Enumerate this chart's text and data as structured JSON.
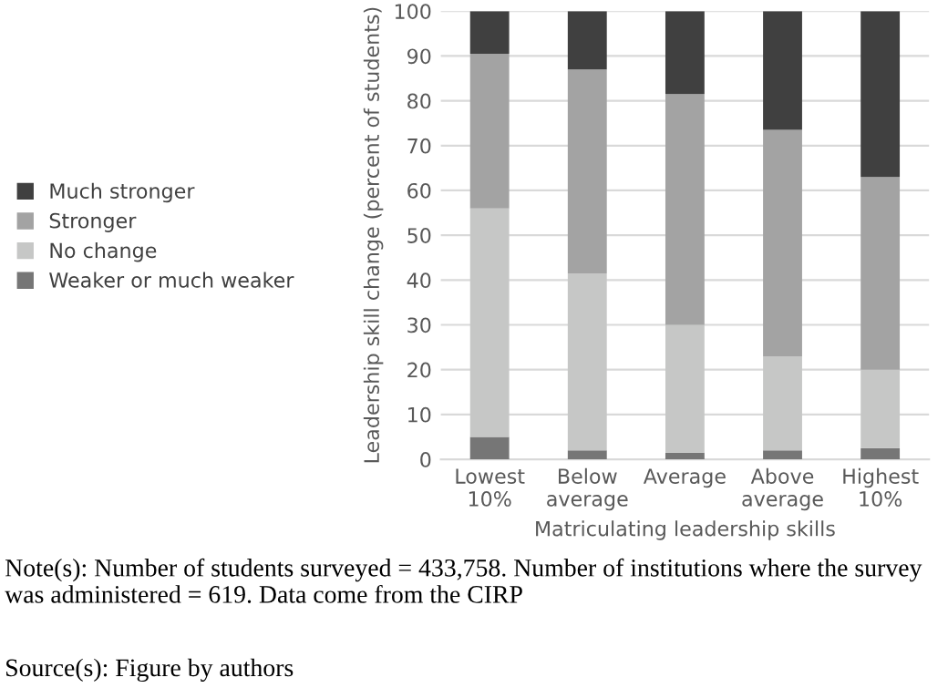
{
  "chart_data": {
    "type": "bar",
    "stacked": true,
    "categories": [
      "Lowest\n10%",
      "Below\naverage",
      "Average",
      "Above\naverage",
      "Highest\n10%"
    ],
    "series": [
      {
        "name": "Weaker or much weaker",
        "color": "#767676",
        "values": [
          5,
          2,
          1.5,
          2,
          2.5
        ]
      },
      {
        "name": "No change",
        "color": "#c6c7c6",
        "values": [
          51,
          39.5,
          28.5,
          21,
          17.5
        ]
      },
      {
        "name": "Stronger",
        "color": "#a3a3a3",
        "values": [
          34.5,
          45.5,
          51.5,
          50.5,
          43
        ]
      },
      {
        "name": "Much stronger",
        "color": "#404040",
        "values": [
          9.5,
          13,
          18.5,
          26.5,
          37
        ]
      }
    ],
    "xlabel": "Matriculating leadership skills",
    "ylabel": "Leadership skill change (percent of students)",
    "ylim": [
      0,
      100
    ],
    "yticks": [
      0,
      10,
      20,
      30,
      40,
      50,
      60,
      70,
      80,
      90,
      100
    ],
    "grid": "y",
    "legend": "left",
    "annotations": [
      "Note(s): Number of students surveyed = 433,758. Number of institutions where the survey was administered = 619. Data come from the CIRP",
      "Source(s): Figure by authors"
    ]
  }
}
